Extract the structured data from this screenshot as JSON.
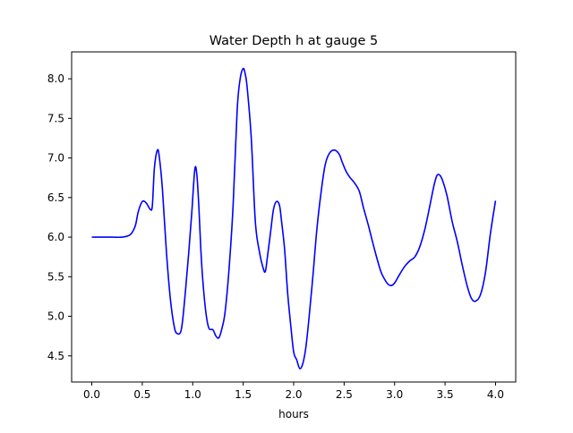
{
  "chart_data": {
    "type": "line",
    "title": "Water Depth h at gauge 5",
    "xlabel": "hours",
    "ylabel": "",
    "xlim": [
      -0.2,
      4.2
    ],
    "ylim": [
      4.17,
      8.34
    ],
    "x_ticks": [
      0.0,
      0.5,
      1.0,
      1.5,
      2.0,
      2.5,
      3.0,
      3.5,
      4.0
    ],
    "x_tick_labels": [
      "0.0",
      "0.5",
      "1.0",
      "1.5",
      "2.0",
      "2.5",
      "3.0",
      "3.5",
      "4.0"
    ],
    "y_ticks": [
      4.5,
      5.0,
      5.5,
      6.0,
      6.5,
      7.0,
      7.5,
      8.0
    ],
    "y_tick_labels": [
      "4.5",
      "5.0",
      "5.5",
      "6.0",
      "6.5",
      "7.0",
      "7.5",
      "8.0"
    ],
    "grid": false,
    "legend": null,
    "series": [
      {
        "color": "#0000ff",
        "x": [
          0.0,
          0.1,
          0.2,
          0.3,
          0.38,
          0.43,
          0.46,
          0.5,
          0.54,
          0.58,
          0.6,
          0.62,
          0.65,
          0.67,
          0.7,
          0.74,
          0.78,
          0.82,
          0.85,
          0.88,
          0.9,
          0.93,
          0.96,
          0.99,
          1.02,
          1.04,
          1.06,
          1.08,
          1.1,
          1.13,
          1.16,
          1.2,
          1.23,
          1.26,
          1.29,
          1.32,
          1.36,
          1.4,
          1.44,
          1.47,
          1.5,
          1.52,
          1.54,
          1.58,
          1.62,
          1.66,
          1.7,
          1.72,
          1.74,
          1.77,
          1.8,
          1.83,
          1.86,
          1.88,
          1.91,
          1.94,
          1.97,
          2.0,
          2.03,
          2.06,
          2.09,
          2.12,
          2.15,
          2.19,
          2.23,
          2.27,
          2.31,
          2.35,
          2.4,
          2.45,
          2.48,
          2.52,
          2.56,
          2.6,
          2.65,
          2.69,
          2.74,
          2.8,
          2.86,
          2.9,
          2.94,
          2.97,
          3.0,
          3.05,
          3.1,
          3.15,
          3.2,
          3.25,
          3.3,
          3.35,
          3.39,
          3.42,
          3.45,
          3.48,
          3.52,
          3.57,
          3.62,
          3.67,
          3.72,
          3.76,
          3.8,
          3.85,
          3.9,
          3.95,
          4.0
        ],
        "y": [
          6.0,
          6.0,
          6.0,
          6.0,
          6.03,
          6.14,
          6.32,
          6.45,
          6.43,
          6.35,
          6.4,
          6.87,
          7.1,
          7.0,
          6.6,
          5.8,
          5.2,
          4.85,
          4.78,
          4.8,
          4.95,
          5.35,
          5.8,
          6.3,
          6.85,
          6.8,
          6.4,
          5.85,
          5.45,
          5.05,
          4.85,
          4.83,
          4.75,
          4.73,
          4.85,
          5.05,
          5.6,
          6.4,
          7.6,
          8.0,
          8.13,
          8.06,
          7.88,
          7.25,
          6.2,
          5.82,
          5.6,
          5.57,
          5.75,
          6.05,
          6.35,
          6.45,
          6.4,
          6.2,
          5.85,
          5.3,
          4.9,
          4.55,
          4.45,
          4.34,
          4.4,
          4.6,
          4.95,
          5.5,
          6.1,
          6.55,
          6.9,
          7.05,
          7.1,
          7.05,
          6.95,
          6.83,
          6.75,
          6.69,
          6.58,
          6.38,
          6.15,
          5.85,
          5.58,
          5.47,
          5.4,
          5.39,
          5.42,
          5.53,
          5.63,
          5.7,
          5.75,
          5.88,
          6.1,
          6.4,
          6.65,
          6.78,
          6.78,
          6.7,
          6.52,
          6.2,
          5.95,
          5.65,
          5.38,
          5.23,
          5.19,
          5.27,
          5.55,
          6.05,
          6.46
        ]
      }
    ]
  }
}
